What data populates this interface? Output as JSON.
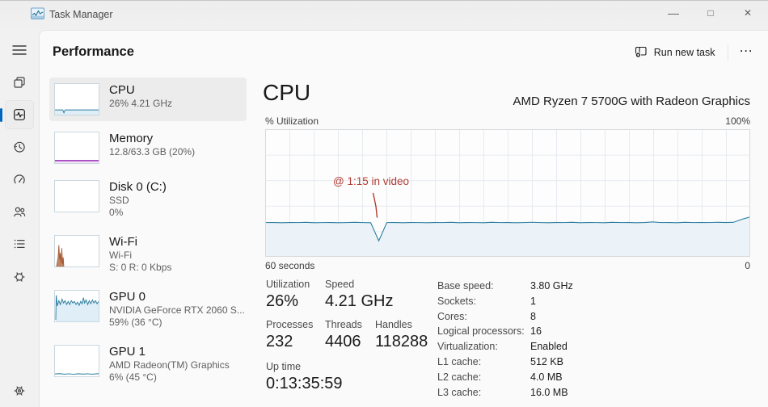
{
  "colors": {
    "accent": "#0067c0",
    "cpu-line": "#2b7d9e",
    "cpu-fill": "#ebf3f9",
    "cpu-fill-strong": "#e0eef8",
    "memory-line": "#8b12ae",
    "network-line": "#a0522d",
    "annotation": "#b23b32"
  },
  "window": {
    "title": "Task Manager",
    "minimize_glyph": "—",
    "maximize_glyph": "□",
    "close_glyph": "✕"
  },
  "header": {
    "title": "Performance",
    "run_new_task_label": "Run new task",
    "more_glyph": "···"
  },
  "sidebar": {
    "icons": [
      "hamburger-menu",
      "processes",
      "performance",
      "app-history",
      "startup-apps",
      "users",
      "details",
      "services",
      "settings"
    ],
    "active": "performance"
  },
  "device_list": [
    {
      "title": "CPU",
      "line1": "26% 4.21 GHz"
    },
    {
      "title": "Memory",
      "line1": "12.8/63.3 GB (20%)"
    },
    {
      "title": "Disk 0 (C:)",
      "line1": "SSD",
      "line2": "0%"
    },
    {
      "title": "Wi-Fi",
      "line1": "Wi-Fi",
      "line2": "S: 0 R: 0 Kbps"
    },
    {
      "title": "GPU 0",
      "line1": "NVIDIA GeForce RTX 2060 S...",
      "line2": "59% (36 °C)"
    },
    {
      "title": "GPU 1",
      "line1": "AMD Radeon(TM) Graphics",
      "line2": "6% (45 °C)"
    }
  ],
  "cpu": {
    "title": "CPU",
    "subtitle": "AMD Ryzen 7 5700G with Radeon Graphics",
    "graph": {
      "label_top_left": "% Utilization",
      "label_top_right": "100%",
      "label_bottom_left": "60 seconds",
      "label_bottom_right": "0",
      "series_pct": [
        26.5,
        26.6,
        26.4,
        26.6,
        26.5,
        26.7,
        26.4,
        26.5,
        26.6,
        26.4,
        26.5,
        26.7,
        26.5,
        26.4,
        12.0,
        26.5,
        26.6,
        26.4,
        26.6,
        26.5,
        26.4,
        26.6,
        26.5,
        26.7,
        26.4,
        26.6,
        26.5,
        26.4,
        26.7,
        26.5,
        26.6,
        26.4,
        26.5,
        26.8,
        26.5,
        26.4,
        26.6,
        26.5,
        26.7,
        26.4,
        26.6,
        26.5,
        26.4,
        26.7,
        26.5,
        26.6,
        26.4,
        26.6,
        27.0,
        26.5,
        26.6,
        26.4,
        26.7,
        26.5,
        26.6,
        26.5,
        26.8,
        26.6,
        26.7,
        29.0,
        30.8
      ]
    },
    "annotation": {
      "text": "@ 1:15 in video"
    },
    "stats": {
      "utilization_label": "Utilization",
      "utilization_value": "26%",
      "speed_label": "Speed",
      "speed_value": "4.21 GHz",
      "processes_label": "Processes",
      "processes_value": "232",
      "threads_label": "Threads",
      "threads_value": "4406",
      "handles_label": "Handles",
      "handles_value": "118288",
      "uptime_label": "Up time",
      "uptime_value": "0:13:35:59"
    },
    "specs": [
      {
        "label": "Base speed:",
        "value": "3.80 GHz"
      },
      {
        "label": "Sockets:",
        "value": "1"
      },
      {
        "label": "Cores:",
        "value": "8"
      },
      {
        "label": "Logical processors:",
        "value": "16"
      },
      {
        "label": "Virtualization:",
        "value": "Enabled"
      },
      {
        "label": "L1 cache:",
        "value": "512 KB"
      },
      {
        "label": "L2 cache:",
        "value": "4.0 MB"
      },
      {
        "label": "L3 cache:",
        "value": "16.0 MB"
      }
    ]
  }
}
